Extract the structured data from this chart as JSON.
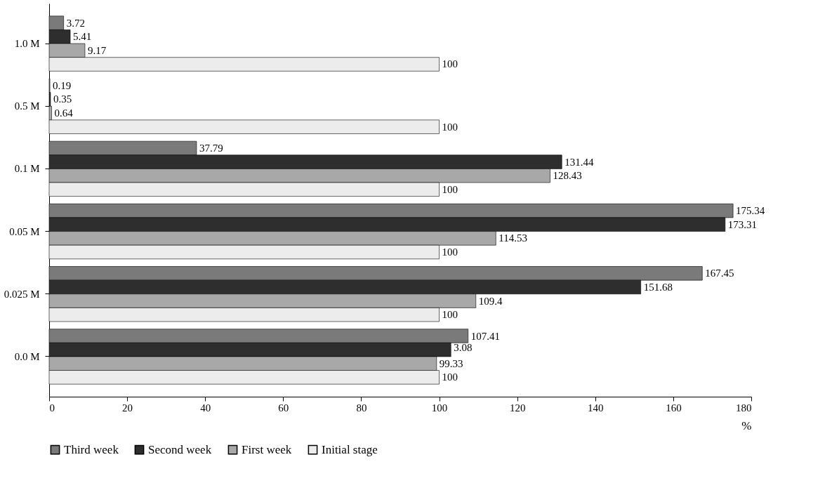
{
  "chart_data": {
    "type": "bar",
    "orientation": "horizontal",
    "xlabel": "%",
    "categories": [
      "1.0 M",
      "0.5 M",
      "0.1 M",
      "0.05 M",
      "0.025 M",
      "0.0 M"
    ],
    "series": [
      {
        "name": "Third week",
        "color": "#7a7a7a",
        "values": [
          3.72,
          0.19,
          37.79,
          175.34,
          167.45,
          107.41
        ],
        "value_labels": [
          "3.72",
          "0.19",
          "37.79",
          "175.34",
          "167.45",
          "107.41"
        ]
      },
      {
        "name": "Second week",
        "color": "#2e2e2e",
        "values": [
          5.41,
          0.35,
          131.44,
          173.31,
          151.68,
          103
        ],
        "value_labels": [
          "5.41",
          "0.35",
          "131.44",
          "173.31",
          "151.68",
          null
        ]
      },
      {
        "name": "First week",
        "color": "#a8a8a8",
        "values": [
          9.17,
          0.64,
          128.43,
          114.53,
          109.4,
          99.33
        ],
        "value_labels": [
          "9.17",
          "0.64",
          "128.43",
          "114.53",
          "109.4",
          "99.33"
        ]
      },
      {
        "name": "Initial stage",
        "color": "#ececec",
        "values": [
          100,
          100,
          100,
          100,
          100,
          100
        ],
        "value_labels": [
          "100",
          "100",
          "100",
          "100",
          "100",
          "100"
        ]
      }
    ],
    "xlim": [
      0,
      180
    ],
    "xticks": [
      0,
      20,
      40,
      60,
      80,
      100,
      120,
      140,
      160,
      180
    ],
    "annotations": [
      {
        "text": "3.08",
        "x": 103,
        "y": "0.0 M"
      }
    ],
    "grid": false,
    "legend": "bottom"
  }
}
